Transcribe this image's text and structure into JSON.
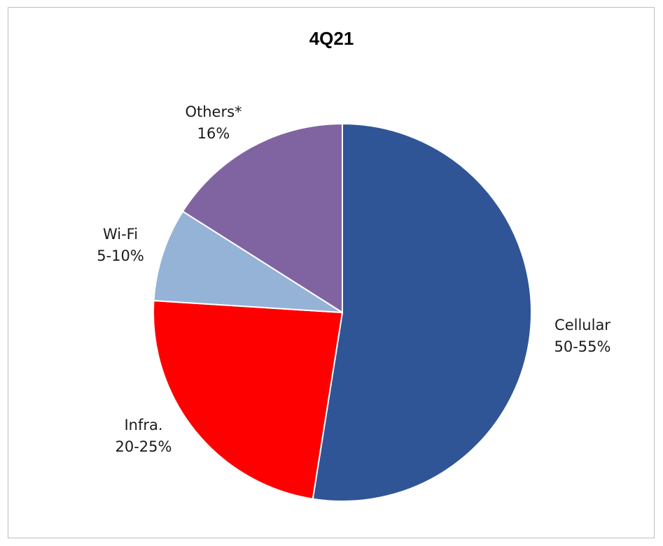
{
  "chart_data": {
    "type": "pie",
    "title": "4Q21",
    "start_angle_deg": 0,
    "direction": "clockwise",
    "slices": [
      {
        "name": "Cellular",
        "label": "50-55%",
        "value": 52.5,
        "color": "#2f5597"
      },
      {
        "name": "Infra.",
        "label": "20-25%",
        "value": 23.5,
        "color": "#ff0000"
      },
      {
        "name": "Wi-Fi",
        "label": "5-10%",
        "value": 8,
        "color": "#95b3d7"
      },
      {
        "name": "Others*",
        "label": "16%",
        "value": 16,
        "color": "#8064a2"
      }
    ]
  }
}
